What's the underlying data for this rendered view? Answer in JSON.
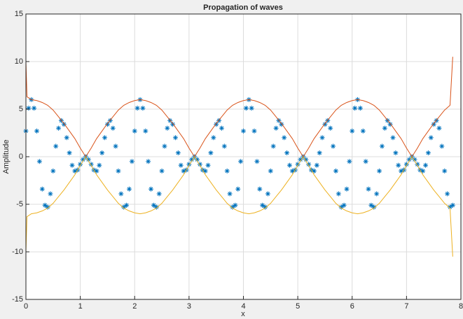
{
  "chart_data": {
    "type": "line",
    "title": "Propagation of waves",
    "xlabel": "x",
    "ylabel": "Amplitude",
    "xlim": [
      0,
      8
    ],
    "ylim": [
      -15,
      15
    ],
    "xticks": [
      0,
      1,
      2,
      3,
      4,
      5,
      6,
      7,
      8
    ],
    "yticks": [
      -15,
      -10,
      -5,
      0,
      5,
      10,
      15
    ],
    "grid": true,
    "series": [
      {
        "color": "#0072bd",
        "marker": "*",
        "linestyle": "none",
        "x": [
          0,
          0.05,
          0.1,
          0.15,
          0.2,
          0.25,
          0.3,
          0.35,
          0.4,
          0.45,
          0.5,
          0.55,
          0.6,
          0.65,
          0.7,
          0.75,
          0.8,
          0.85,
          0.9,
          0.95,
          1,
          1.05,
          1.1,
          1.15,
          1.2,
          1.25,
          1.3,
          1.35,
          1.4,
          1.45,
          1.5,
          1.55,
          1.6,
          1.65,
          1.7,
          1.75,
          1.8,
          1.85,
          1.9,
          1.95,
          2,
          2.05,
          2.1,
          2.15,
          2.2,
          2.25,
          2.3,
          2.35,
          2.4,
          2.45,
          2.5,
          2.55,
          2.6,
          2.65,
          2.7,
          2.75,
          2.8,
          2.85,
          2.9,
          2.95,
          3,
          3.05,
          3.1,
          3.15,
          3.2,
          3.25,
          3.3,
          3.35,
          3.4,
          3.45,
          3.5,
          3.55,
          3.6,
          3.65,
          3.7,
          3.75,
          3.8,
          3.85,
          3.9,
          3.95,
          4,
          4.05,
          4.1,
          4.15,
          4.2,
          4.25,
          4.3,
          4.35,
          4.4,
          4.45,
          4.5,
          4.55,
          4.6,
          4.65,
          4.7,
          4.75,
          4.8,
          4.85,
          4.9,
          4.95,
          5,
          5.05,
          5.1,
          5.15,
          5.2,
          5.25,
          5.3,
          5.35,
          5.4,
          5.45,
          5.5,
          5.55,
          5.6,
          5.65,
          5.7,
          5.75,
          5.8,
          5.85,
          5.9,
          5.95,
          6,
          6.05,
          6.1,
          6.15,
          6.2,
          6.25,
          6.3,
          6.35,
          6.4,
          6.45,
          6.5,
          6.55,
          6.6,
          6.65,
          6.7,
          6.75,
          6.8,
          6.85,
          6.9,
          6.95,
          7,
          7.05,
          7.1,
          7.15,
          7.2,
          7.25,
          7.3,
          7.35,
          7.4,
          7.45,
          7.5,
          7.55,
          7.6,
          7.65,
          7.7,
          7.75,
          7.8,
          7.85
        ],
        "values": [
          2.7,
          5.1,
          6.0,
          5.1,
          2.7,
          -0.5,
          -3.4,
          -5.1,
          -5.3,
          -3.9,
          -1.5,
          1.1,
          3.0,
          3.8,
          3.4,
          2.0,
          0.4,
          -0.9,
          -1.5,
          -1.4,
          -0.8,
          -0.3,
          0,
          -0.3,
          -0.8,
          -1.4,
          -1.5,
          -0.9,
          0.4,
          2.0,
          3.4,
          3.8,
          3.0,
          1.1,
          -1.5,
          -3.9,
          -5.3,
          -5.1,
          -3.4,
          -0.5,
          2.7,
          5.1,
          6.0,
          5.1,
          2.7,
          -0.5,
          -3.4,
          -5.1,
          -5.3,
          -3.9,
          -1.5,
          1.1,
          3.0,
          3.8,
          3.4,
          2.0,
          0.4,
          -0.9,
          -1.5,
          -1.4,
          -0.8,
          -0.3,
          0,
          -0.3,
          -0.8,
          -1.4,
          -1.5,
          -0.9,
          0.4,
          2.0,
          3.4,
          3.8,
          3.0,
          1.1,
          -1.5,
          -3.9,
          -5.3,
          -5.1,
          -3.4,
          -0.5,
          2.7,
          5.1,
          6.0,
          5.1,
          2.7,
          -0.5,
          -3.4,
          -5.1,
          -5.3,
          -3.9,
          -1.5,
          1.1,
          3.0,
          3.8,
          3.4,
          2.0,
          0.4,
          -0.9,
          -1.5,
          -1.4,
          -0.8,
          -0.3,
          0,
          -0.3,
          -0.8,
          -1.4,
          -1.5,
          -0.9,
          0.4,
          2.0,
          3.4,
          3.8,
          3.0,
          1.1,
          -1.5,
          -3.9,
          -5.3,
          -5.1,
          -3.4,
          -0.5,
          2.7,
          5.1,
          6.0,
          5.1,
          2.7,
          -0.5,
          -3.4,
          -5.1,
          -5.3,
          -3.9,
          -1.5,
          1.1,
          3.0,
          3.8,
          3.4,
          2.0,
          0.4,
          -0.9,
          -1.5,
          -1.4,
          -0.8,
          -0.3,
          0,
          -0.3,
          -0.8,
          -1.4,
          -1.5,
          -0.9,
          0.4,
          2.0,
          3.4,
          3.8,
          3.0,
          1.1,
          -1.5,
          -3.9,
          -5.3,
          -5.1
        ]
      },
      {
        "color": "#d95319",
        "x": [
          0,
          0.02,
          0.1,
          0.2,
          0.3,
          0.4,
          0.5,
          0.6,
          0.7,
          0.8,
          0.9,
          1,
          1.1,
          1.2,
          1.3,
          1.4,
          1.5,
          1.6,
          1.7,
          1.8,
          1.9,
          2,
          2.1,
          2.2,
          2.3,
          2.4,
          2.5,
          2.6,
          2.7,
          2.8,
          2.9,
          3,
          3.1,
          3.2,
          3.3,
          3.4,
          3.5,
          3.6,
          3.7,
          3.8,
          3.9,
          4,
          4.1,
          4.2,
          4.3,
          4.4,
          4.5,
          4.6,
          4.7,
          4.8,
          4.9,
          5,
          5.1,
          5.2,
          5.3,
          5.4,
          5.5,
          5.6,
          5.7,
          5.8,
          5.9,
          6,
          6.1,
          6.2,
          6.3,
          6.4,
          6.5,
          6.6,
          6.7,
          6.8,
          6.9,
          7,
          7.1,
          7.2,
          7.3,
          7.4,
          7.5,
          7.6,
          7.7,
          7.8,
          7.85
        ],
        "values": [
          10.0,
          6.3,
          6.0,
          5.9,
          5.7,
          5.4,
          4.9,
          4.2,
          3.5,
          2.7,
          1.9,
          0.9,
          0,
          0.9,
          1.9,
          2.7,
          3.5,
          4.2,
          4.9,
          5.4,
          5.7,
          5.9,
          6.0,
          5.9,
          5.7,
          5.4,
          4.9,
          4.2,
          3.5,
          2.7,
          1.9,
          0.9,
          0,
          0.9,
          1.9,
          2.7,
          3.5,
          4.2,
          4.9,
          5.4,
          5.7,
          5.9,
          6.0,
          5.9,
          5.7,
          5.4,
          4.9,
          4.2,
          3.5,
          2.7,
          1.9,
          0.9,
          0,
          0.9,
          1.9,
          2.7,
          3.5,
          4.2,
          4.9,
          5.4,
          5.7,
          5.9,
          6.0,
          5.9,
          5.7,
          5.4,
          4.9,
          4.2,
          3.5,
          2.7,
          1.9,
          0.9,
          0,
          0.9,
          1.9,
          2.7,
          3.5,
          4.2,
          4.9,
          5.4,
          10.5
        ]
      },
      {
        "color": "#edb120",
        "x": [
          0,
          0.02,
          0.1,
          0.2,
          0.3,
          0.4,
          0.5,
          0.6,
          0.7,
          0.8,
          0.9,
          1,
          1.1,
          1.2,
          1.3,
          1.4,
          1.5,
          1.6,
          1.7,
          1.8,
          1.9,
          2,
          2.1,
          2.2,
          2.3,
          2.4,
          2.5,
          2.6,
          2.7,
          2.8,
          2.9,
          3,
          3.1,
          3.2,
          3.3,
          3.4,
          3.5,
          3.6,
          3.7,
          3.8,
          3.9,
          4,
          4.1,
          4.2,
          4.3,
          4.4,
          4.5,
          4.6,
          4.7,
          4.8,
          4.9,
          5,
          5.1,
          5.2,
          5.3,
          5.4,
          5.5,
          5.6,
          5.7,
          5.8,
          5.9,
          6,
          6.1,
          6.2,
          6.3,
          6.4,
          6.5,
          6.6,
          6.7,
          6.8,
          6.9,
          7,
          7.1,
          7.2,
          7.3,
          7.4,
          7.5,
          7.6,
          7.7,
          7.8,
          7.85
        ],
        "values": [
          -10.0,
          -6.3,
          -6.0,
          -5.9,
          -5.7,
          -5.4,
          -4.9,
          -4.2,
          -3.5,
          -2.7,
          -1.9,
          -0.9,
          0,
          -0.9,
          -1.9,
          -2.7,
          -3.5,
          -4.2,
          -4.9,
          -5.4,
          -5.7,
          -5.9,
          -6.0,
          -5.9,
          -5.7,
          -5.4,
          -4.9,
          -4.2,
          -3.5,
          -2.7,
          -1.9,
          -0.9,
          0,
          -0.9,
          -1.9,
          -2.7,
          -3.5,
          -4.2,
          -4.9,
          -5.4,
          -5.7,
          -5.9,
          -6.0,
          -5.9,
          -5.7,
          -5.4,
          -4.9,
          -4.2,
          -3.5,
          -2.7,
          -1.9,
          -0.9,
          0,
          -0.9,
          -1.9,
          -2.7,
          -3.5,
          -4.2,
          -4.9,
          -5.4,
          -5.7,
          -5.9,
          -6.0,
          -5.9,
          -5.7,
          -5.4,
          -4.9,
          -4.2,
          -3.5,
          -2.7,
          -1.9,
          -0.9,
          0,
          -0.9,
          -1.9,
          -2.7,
          -3.5,
          -4.2,
          -4.9,
          -5.4,
          -10.5
        ]
      }
    ]
  }
}
